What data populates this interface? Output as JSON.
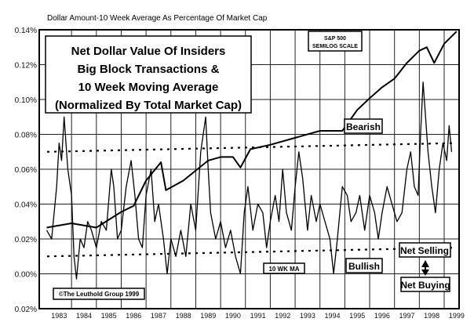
{
  "chart_data": {
    "type": "line",
    "subtitle": "Dollar Amount-10 Week Average As Percentage Of Market Cap",
    "title_lines": [
      "Net Dollar Value Of Insiders",
      "Big Block Transactions &",
      "10 Week Moving Average",
      "(Normalized By Total Market Cap)"
    ],
    "sp_box_lines": [
      "S&P 500",
      "SEMILOG SCALE"
    ],
    "ylim": [
      -0.02,
      0.14
    ],
    "xlim": [
      1982.7,
      1999.6
    ],
    "grid": true,
    "yticks": [
      {
        "value": 0.14,
        "label": "0.14%"
      },
      {
        "value": 0.12,
        "label": "0.12%"
      },
      {
        "value": 0.1,
        "label": "0.10%"
      },
      {
        "value": 0.08,
        "label": "0.08%"
      },
      {
        "value": 0.06,
        "label": "0.06%"
      },
      {
        "value": 0.04,
        "label": "0.04%"
      },
      {
        "value": 0.02,
        "label": "0.02%"
      },
      {
        "value": 0.0,
        "label": "0.00%"
      },
      {
        "value": -0.02,
        "label": "0.02%"
      }
    ],
    "xticks": [
      "1983",
      "1984",
      "1985",
      "1986",
      "1987",
      "1988",
      "1989",
      "1990",
      "1991",
      "1992",
      "1993",
      "1994",
      "1995",
      "1996",
      "1997",
      "1998",
      "1999"
    ],
    "series": [
      {
        "name": "10 WK MA",
        "color": "#000000",
        "x": [
          1983.0,
          1983.2,
          1983.4,
          1983.5,
          1983.6,
          1983.7,
          1983.85,
          1984.0,
          1984.1,
          1984.2,
          1984.35,
          1984.5,
          1984.65,
          1984.8,
          1985.0,
          1985.2,
          1985.4,
          1985.6,
          1985.7,
          1985.85,
          1986.0,
          1986.2,
          1986.4,
          1986.55,
          1986.7,
          1986.85,
          1987.0,
          1987.2,
          1987.35,
          1987.5,
          1987.7,
          1987.85,
          1988.0,
          1988.2,
          1988.4,
          1988.6,
          1988.8,
          1989.0,
          1989.2,
          1989.4,
          1989.5,
          1989.6,
          1989.8,
          1990.0,
          1990.2,
          1990.4,
          1990.6,
          1990.8,
          1990.95,
          1991.1,
          1991.3,
          1991.5,
          1991.7,
          1991.85,
          1992.0,
          1992.2,
          1992.35,
          1992.5,
          1992.65,
          1992.85,
          1993.0,
          1993.15,
          1993.3,
          1993.5,
          1993.65,
          1993.85,
          1994.0,
          1994.2,
          1994.4,
          1994.55,
          1994.7,
          1994.9,
          1995.1,
          1995.25,
          1995.45,
          1995.6,
          1995.8,
          1996.0,
          1996.2,
          1996.35,
          1996.5,
          1996.7,
          1996.9,
          1997.1,
          1997.3,
          1997.5,
          1997.65,
          1997.8,
          1997.95,
          1998.05,
          1998.15,
          1998.25,
          1998.35,
          1998.5,
          1998.65,
          1998.8,
          1998.95,
          1999.1,
          1999.2,
          1999.3
        ],
        "y": [
          0.025,
          0.02,
          0.05,
          0.075,
          0.065,
          0.09,
          0.06,
          0.045,
          0.01,
          -0.003,
          0.02,
          0.015,
          0.03,
          0.025,
          0.015,
          0.03,
          0.025,
          0.06,
          0.05,
          0.02,
          0.025,
          0.05,
          0.065,
          0.045,
          0.02,
          0.015,
          0.045,
          0.06,
          0.03,
          0.04,
          0.02,
          0.0,
          0.02,
          0.01,
          0.025,
          0.01,
          0.04,
          0.025,
          0.07,
          0.09,
          0.06,
          0.035,
          0.02,
          0.03,
          0.015,
          0.025,
          0.01,
          0.0,
          0.035,
          0.05,
          0.025,
          0.04,
          0.035,
          0.015,
          0.03,
          0.045,
          0.03,
          0.06,
          0.035,
          0.025,
          0.05,
          0.07,
          0.055,
          0.025,
          0.045,
          0.03,
          0.04,
          0.03,
          0.02,
          0.0,
          0.02,
          0.05,
          0.045,
          0.03,
          0.035,
          0.045,
          0.025,
          0.045,
          0.035,
          0.02,
          0.035,
          0.05,
          0.04,
          0.03,
          0.035,
          0.06,
          0.07,
          0.05,
          0.045,
          0.08,
          0.11,
          0.09,
          0.07,
          0.05,
          0.035,
          0.06,
          0.075,
          0.065,
          0.085,
          0.07
        ]
      },
      {
        "name": "S&P 500",
        "color": "#000000",
        "x": [
          1983.0,
          1984.0,
          1985.0,
          1985.5,
          1986.0,
          1986.5,
          1987.0,
          1987.6,
          1987.8,
          1988.5,
          1989.5,
          1990.0,
          1990.5,
          1990.8,
          1991.2,
          1992.0,
          1993.0,
          1994.0,
          1994.9,
          1995.5,
          1996.0,
          1996.5,
          1997.0,
          1997.5,
          1998.0,
          1998.3,
          1998.6,
          1999.0,
          1999.5
        ],
        "y": [
          0.0265,
          0.029,
          0.0265,
          0.031,
          0.0355,
          0.039,
          0.0535,
          0.064,
          0.048,
          0.0535,
          0.065,
          0.067,
          0.067,
          0.061,
          0.0715,
          0.074,
          0.078,
          0.082,
          0.082,
          0.094,
          0.1007,
          0.107,
          0.112,
          0.121,
          0.128,
          0.13,
          0.121,
          0.132,
          0.139
        ]
      }
    ],
    "reference_lines": [
      {
        "label": "Bearish",
        "style": "dashed",
        "y_start": 0.07,
        "y_end": 0.075
      },
      {
        "label": "Bullish",
        "style": "dashed",
        "y_start": 0.01,
        "y_end": 0.015
      }
    ],
    "annotations": {
      "bearish": "Bearish",
      "bullish": "Bullish",
      "ma_label": "10 WK MA",
      "net_selling": "Net Selling",
      "net_buying": "Net Buying",
      "copyright": "©The Leuthold Group 1999"
    }
  }
}
